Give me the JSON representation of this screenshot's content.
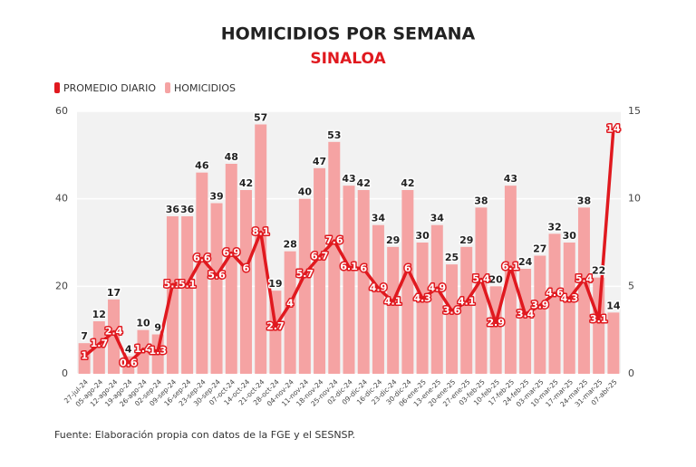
{
  "chart_data": {
    "type": "bar_line",
    "title": "HOMICIDIOS POR SEMANA",
    "subtitle": "SINALOA",
    "source": "Fuente: Elaboración propia con datos de la FGE y el SESNSP.",
    "categories": [
      "27-jul-24",
      "05-ago-24",
      "12-ago-24",
      "19-ago-24",
      "26-ago-24",
      "02-sep-24",
      "09-sep-24",
      "16-sep-24",
      "23-sep-24",
      "30-sep-24",
      "07-oct-24",
      "14-oct-24",
      "21-oct-24",
      "28-oct-24",
      "04-nov-24",
      "11-nov-24",
      "18-nov-24",
      "25-nov-24",
      "02-dic-24",
      "09-dic-24",
      "16-dic-24",
      "23-dic-24",
      "30-dic-24",
      "06-ene-25",
      "13-ene-25",
      "20-ene-25",
      "27-ene-25",
      "03-feb-25",
      "10-feb-25",
      "17-feb-25",
      "24-feb-25",
      "03-mar-25",
      "10-mar-25",
      "17-mar-25",
      "24-mar-25",
      "31-mar-25",
      "07-abr-25"
    ],
    "series": [
      {
        "name": "PROMEDIO DIARIO",
        "type": "line",
        "axis": "y2",
        "color": "#e0191f",
        "values": [
          1,
          1.7,
          2.4,
          0.6,
          1.4,
          1.3,
          5.1,
          5.1,
          6.6,
          5.6,
          6.9,
          6,
          8.1,
          2.7,
          4,
          5.7,
          6.7,
          7.6,
          6.1,
          6,
          4.9,
          4.1,
          6,
          4.3,
          4.9,
          3.6,
          4.1,
          5.4,
          2.9,
          6.1,
          3.4,
          3.9,
          4.6,
          4.3,
          5.4,
          3.1,
          14
        ]
      },
      {
        "name": "HOMICIDIOS",
        "type": "bar",
        "color": "#f5a3a3",
        "values": [
          7,
          12,
          17,
          4,
          10,
          9,
          36,
          36,
          46,
          39,
          48,
          42,
          57,
          19,
          28,
          40,
          47,
          53,
          43,
          42,
          34,
          29,
          42,
          30,
          34,
          25,
          29,
          38,
          20,
          43,
          24,
          27,
          32,
          30,
          38,
          22,
          14
        ]
      }
    ],
    "ylim": [
      0,
      60
    ],
    "yticks": [
      0,
      20,
      40,
      60
    ],
    "y2lim": [
      0,
      15
    ],
    "y2ticks": [
      0,
      5,
      10,
      15
    ],
    "grid": true,
    "legend": "top-left"
  }
}
